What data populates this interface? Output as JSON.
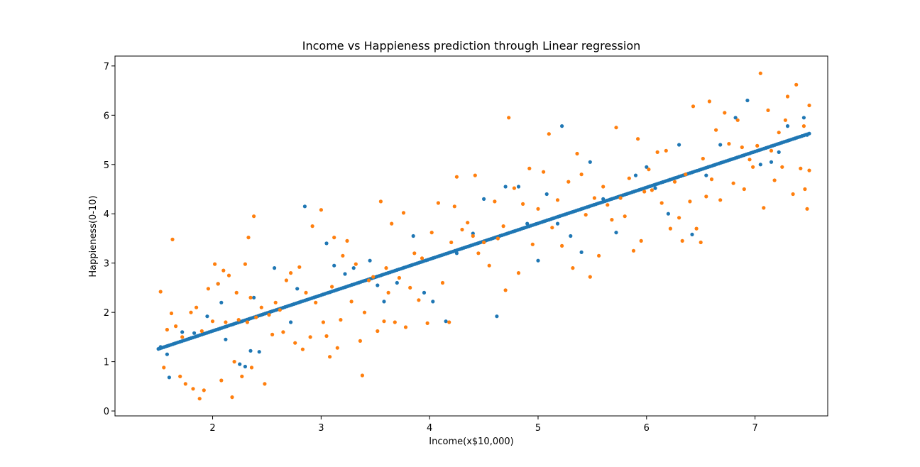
{
  "chart_data": {
    "type": "scatter",
    "title": "Income vs Happieness prediction through Linear regression",
    "xlabel": "Income(x$10,000)",
    "ylabel": "Happieness(0-10)",
    "xlim": [
      1.1,
      7.67
    ],
    "ylim": [
      -0.1,
      7.2
    ],
    "x_ticks": [
      "2",
      "3",
      "4",
      "5",
      "6",
      "7"
    ],
    "y_ticks": [
      "0",
      "1",
      "2",
      "3",
      "4",
      "5",
      "6",
      "7"
    ],
    "grid": false,
    "legend": "none",
    "series": [
      {
        "color": "#1f77b4",
        "description_role": "actual (blue)",
        "points": [
          [
            1.52,
            1.3
          ],
          [
            1.58,
            1.15
          ],
          [
            1.6,
            0.68
          ],
          [
            1.72,
            1.6
          ],
          [
            1.83,
            1.58
          ],
          [
            1.95,
            1.92
          ],
          [
            2.05,
            2.58
          ],
          [
            2.08,
            2.2
          ],
          [
            2.12,
            1.45
          ],
          [
            2.25,
            0.95
          ],
          [
            2.3,
            0.9
          ],
          [
            2.35,
            1.22
          ],
          [
            2.38,
            2.3
          ],
          [
            2.43,
            1.2
          ],
          [
            2.57,
            2.9
          ],
          [
            2.72,
            1.8
          ],
          [
            2.78,
            2.48
          ],
          [
            2.85,
            4.15
          ],
          [
            3.05,
            3.4
          ],
          [
            3.12,
            2.95
          ],
          [
            3.22,
            2.78
          ],
          [
            3.3,
            2.9
          ],
          [
            3.45,
            3.05
          ],
          [
            3.52,
            2.55
          ],
          [
            3.58,
            2.22
          ],
          [
            3.7,
            2.6
          ],
          [
            3.85,
            3.55
          ],
          [
            3.95,
            2.4
          ],
          [
            4.03,
            2.22
          ],
          [
            4.15,
            1.82
          ],
          [
            4.25,
            3.2
          ],
          [
            4.4,
            3.6
          ],
          [
            4.5,
            4.3
          ],
          [
            4.62,
            1.92
          ],
          [
            4.7,
            4.55
          ],
          [
            4.82,
            4.55
          ],
          [
            4.9,
            3.8
          ],
          [
            5.0,
            3.05
          ],
          [
            5.08,
            4.4
          ],
          [
            5.18,
            3.8
          ],
          [
            5.22,
            5.78
          ],
          [
            5.3,
            3.55
          ],
          [
            5.4,
            3.22
          ],
          [
            5.48,
            5.05
          ],
          [
            5.6,
            4.3
          ],
          [
            5.72,
            3.62
          ],
          [
            5.9,
            4.78
          ],
          [
            6.0,
            4.95
          ],
          [
            6.08,
            4.52
          ],
          [
            6.2,
            4.0
          ],
          [
            6.3,
            5.4
          ],
          [
            6.42,
            3.58
          ],
          [
            6.55,
            4.78
          ],
          [
            6.68,
            5.4
          ],
          [
            6.82,
            5.95
          ],
          [
            6.93,
            6.3
          ],
          [
            7.05,
            5.0
          ],
          [
            7.15,
            5.05
          ],
          [
            7.22,
            5.25
          ],
          [
            7.3,
            5.78
          ],
          [
            7.45,
            5.95
          ],
          [
            7.48,
            5.6
          ]
        ]
      },
      {
        "color": "#ff7f0e",
        "description_role": "predicted (orange)",
        "points": [
          [
            1.52,
            2.42
          ],
          [
            1.55,
            0.88
          ],
          [
            1.58,
            1.65
          ],
          [
            1.62,
            1.98
          ],
          [
            1.63,
            3.48
          ],
          [
            1.66,
            1.72
          ],
          [
            1.7,
            0.7
          ],
          [
            1.72,
            1.5
          ],
          [
            1.75,
            0.55
          ],
          [
            1.8,
            2.0
          ],
          [
            1.82,
            0.45
          ],
          [
            1.85,
            2.1
          ],
          [
            1.88,
            0.25
          ],
          [
            1.9,
            1.62
          ],
          [
            1.92,
            0.42
          ],
          [
            1.96,
            2.48
          ],
          [
            2.0,
            1.82
          ],
          [
            2.02,
            2.98
          ],
          [
            2.05,
            2.58
          ],
          [
            2.08,
            0.62
          ],
          [
            2.1,
            2.85
          ],
          [
            2.12,
            1.8
          ],
          [
            2.15,
            2.75
          ],
          [
            2.18,
            0.28
          ],
          [
            2.2,
            1.0
          ],
          [
            2.22,
            2.4
          ],
          [
            2.24,
            1.85
          ],
          [
            2.27,
            0.7
          ],
          [
            2.3,
            2.98
          ],
          [
            2.32,
            1.8
          ],
          [
            2.33,
            3.52
          ],
          [
            2.35,
            2.3
          ],
          [
            2.36,
            0.88
          ],
          [
            2.38,
            3.95
          ],
          [
            2.4,
            1.9
          ],
          [
            2.45,
            2.1
          ],
          [
            2.48,
            0.55
          ],
          [
            2.52,
            1.95
          ],
          [
            2.55,
            1.55
          ],
          [
            2.58,
            2.2
          ],
          [
            2.62,
            2.05
          ],
          [
            2.65,
            1.6
          ],
          [
            2.68,
            2.65
          ],
          [
            2.72,
            2.8
          ],
          [
            2.76,
            1.38
          ],
          [
            2.8,
            2.92
          ],
          [
            2.83,
            1.25
          ],
          [
            2.86,
            2.4
          ],
          [
            2.9,
            1.5
          ],
          [
            2.92,
            3.75
          ],
          [
            2.95,
            2.2
          ],
          [
            3.0,
            4.08
          ],
          [
            3.02,
            1.8
          ],
          [
            3.05,
            1.52
          ],
          [
            3.08,
            1.1
          ],
          [
            3.1,
            2.52
          ],
          [
            3.12,
            3.52
          ],
          [
            3.15,
            1.28
          ],
          [
            3.18,
            1.85
          ],
          [
            3.2,
            3.15
          ],
          [
            3.24,
            3.45
          ],
          [
            3.28,
            2.22
          ],
          [
            3.32,
            2.98
          ],
          [
            3.36,
            1.42
          ],
          [
            3.38,
            0.72
          ],
          [
            3.4,
            2.0
          ],
          [
            3.44,
            2.65
          ],
          [
            3.48,
            2.72
          ],
          [
            3.52,
            1.62
          ],
          [
            3.55,
            4.25
          ],
          [
            3.58,
            1.82
          ],
          [
            3.6,
            2.9
          ],
          [
            3.62,
            2.4
          ],
          [
            3.65,
            3.8
          ],
          [
            3.68,
            1.8
          ],
          [
            3.72,
            2.7
          ],
          [
            3.76,
            4.02
          ],
          [
            3.78,
            1.7
          ],
          [
            3.82,
            2.5
          ],
          [
            3.86,
            3.2
          ],
          [
            3.9,
            2.25
          ],
          [
            3.93,
            3.1
          ],
          [
            3.98,
            1.78
          ],
          [
            4.02,
            3.62
          ],
          [
            4.08,
            4.22
          ],
          [
            4.12,
            2.6
          ],
          [
            4.18,
            1.8
          ],
          [
            4.2,
            3.42
          ],
          [
            4.23,
            4.15
          ],
          [
            4.25,
            4.75
          ],
          [
            4.3,
            3.68
          ],
          [
            4.35,
            3.82
          ],
          [
            4.4,
            3.55
          ],
          [
            4.42,
            4.78
          ],
          [
            4.45,
            3.2
          ],
          [
            4.5,
            3.42
          ],
          [
            4.55,
            2.95
          ],
          [
            4.6,
            4.25
          ],
          [
            4.63,
            3.5
          ],
          [
            4.68,
            3.75
          ],
          [
            4.7,
            2.45
          ],
          [
            4.73,
            5.95
          ],
          [
            4.78,
            4.52
          ],
          [
            4.82,
            2.8
          ],
          [
            4.86,
            4.2
          ],
          [
            4.92,
            4.92
          ],
          [
            4.95,
            3.38
          ],
          [
            5.0,
            4.1
          ],
          [
            5.05,
            4.85
          ],
          [
            5.1,
            5.62
          ],
          [
            5.13,
            3.72
          ],
          [
            5.18,
            4.28
          ],
          [
            5.22,
            3.35
          ],
          [
            5.28,
            4.65
          ],
          [
            5.32,
            2.9
          ],
          [
            5.36,
            5.22
          ],
          [
            5.4,
            4.8
          ],
          [
            5.44,
            3.98
          ],
          [
            5.48,
            2.72
          ],
          [
            5.52,
            4.32
          ],
          [
            5.56,
            3.15
          ],
          [
            5.6,
            4.55
          ],
          [
            5.64,
            4.18
          ],
          [
            5.68,
            3.88
          ],
          [
            5.72,
            5.75
          ],
          [
            5.76,
            4.32
          ],
          [
            5.8,
            3.95
          ],
          [
            5.84,
            4.72
          ],
          [
            5.88,
            3.25
          ],
          [
            5.92,
            5.52
          ],
          [
            5.95,
            3.45
          ],
          [
            5.98,
            4.45
          ],
          [
            6.02,
            4.9
          ],
          [
            6.05,
            4.48
          ],
          [
            6.1,
            5.25
          ],
          [
            6.14,
            4.22
          ],
          [
            6.18,
            5.28
          ],
          [
            6.22,
            3.7
          ],
          [
            6.26,
            4.65
          ],
          [
            6.3,
            3.92
          ],
          [
            6.33,
            3.45
          ],
          [
            6.36,
            4.8
          ],
          [
            6.4,
            4.25
          ],
          [
            6.43,
            6.18
          ],
          [
            6.46,
            3.7
          ],
          [
            6.5,
            3.42
          ],
          [
            6.52,
            5.12
          ],
          [
            6.55,
            4.35
          ],
          [
            6.58,
            6.28
          ],
          [
            6.6,
            4.7
          ],
          [
            6.64,
            5.7
          ],
          [
            6.68,
            4.28
          ],
          [
            6.72,
            6.05
          ],
          [
            6.76,
            5.42
          ],
          [
            6.8,
            4.62
          ],
          [
            6.84,
            5.9
          ],
          [
            6.88,
            5.35
          ],
          [
            6.9,
            4.5
          ],
          [
            6.95,
            5.1
          ],
          [
            6.98,
            4.95
          ],
          [
            7.02,
            5.38
          ],
          [
            7.05,
            6.85
          ],
          [
            7.08,
            4.12
          ],
          [
            7.12,
            6.1
          ],
          [
            7.15,
            5.28
          ],
          [
            7.18,
            4.68
          ],
          [
            7.22,
            5.65
          ],
          [
            7.25,
            4.95
          ],
          [
            7.28,
            5.9
          ],
          [
            7.3,
            6.38
          ],
          [
            7.35,
            4.4
          ],
          [
            7.38,
            6.62
          ],
          [
            7.42,
            4.92
          ],
          [
            7.45,
            5.78
          ],
          [
            7.48,
            4.1
          ],
          [
            7.5,
            6.2
          ],
          [
            7.46,
            4.5
          ],
          [
            7.5,
            4.88
          ]
        ]
      }
    ]
  }
}
